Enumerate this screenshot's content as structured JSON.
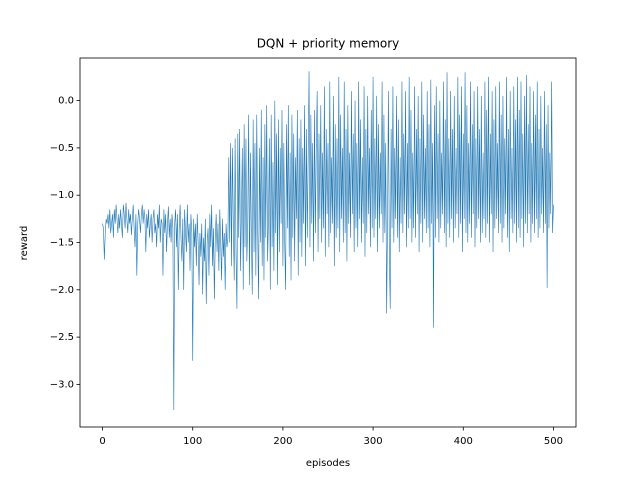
{
  "chart_data": {
    "type": "line",
    "title": "DQN + priority memory",
    "x_label": "episodes",
    "y_label": "reward",
    "color": "#1f77b4",
    "xlim": [
      -25,
      525
    ],
    "xticks": [
      0,
      100,
      200,
      300,
      400,
      500
    ],
    "ylim": [
      -3.45,
      0.45
    ],
    "yticks": [
      {
        "value": -3.0,
        "label": "−3.0"
      },
      {
        "value": -2.5,
        "label": "−2.5"
      },
      {
        "value": -2.0,
        "label": "−2.0"
      },
      {
        "value": -1.5,
        "label": "−1.5"
      },
      {
        "value": -1.0,
        "label": "−1.0"
      },
      {
        "value": -0.5,
        "label": "−0.5"
      },
      {
        "value": 0.0,
        "label": "0.0"
      }
    ],
    "values": [
      -1.3,
      -1.35,
      -1.68,
      -1.4,
      -1.25,
      -1.3,
      -1.2,
      -1.35,
      -1.15,
      -1.4,
      -1.3,
      -1.2,
      -1.45,
      -1.15,
      -1.3,
      -1.1,
      -1.25,
      -1.4,
      -1.2,
      -1.35,
      -1.15,
      -1.3,
      -1.45,
      -1.1,
      -1.2,
      -1.35,
      -1.08,
      -1.25,
      -1.4,
      -1.15,
      -1.3,
      -1.2,
      -1.42,
      -1.25,
      -1.1,
      -1.35,
      -1.55,
      -1.2,
      -1.85,
      -1.3,
      -1.15,
      -1.25,
      -1.4,
      -1.2,
      -1.1,
      -1.3,
      -1.15,
      -1.25,
      -1.6,
      -1.2,
      -1.35,
      -1.15,
      -1.45,
      -1.3,
      -1.2,
      -1.5,
      -1.25,
      -1.15,
      -1.4,
      -1.3,
      -1.55,
      -1.2,
      -1.35,
      -1.1,
      -1.5,
      -1.25,
      -1.3,
      -1.85,
      -1.15,
      -1.4,
      -1.2,
      -1.6,
      -1.3,
      -1.12,
      -1.45,
      -1.25,
      -1.5,
      -1.2,
      -1.35,
      -3.27,
      -1.3,
      -1.15,
      -1.55,
      -1.2,
      -2.0,
      -1.35,
      -1.1,
      -1.45,
      -1.7,
      -1.25,
      -2.0,
      -1.15,
      -1.4,
      -1.6,
      -1.1,
      -1.5,
      -1.3,
      -1.8,
      -1.2,
      -1.4,
      -2.75,
      -1.25,
      -1.55,
      -1.3,
      -1.75,
      -1.2,
      -1.5,
      -1.95,
      -1.4,
      -1.65,
      -1.3,
      -2.05,
      -1.45,
      -1.7,
      -1.25,
      -2.15,
      -1.5,
      -1.35,
      -1.85,
      -1.2,
      -1.55,
      -1.1,
      -1.75,
      -1.35,
      -2.1,
      -1.45,
      -1.2,
      -1.6,
      -1.3,
      -1.8,
      -1.15,
      -1.5,
      -1.9,
      -1.25,
      -1.65,
      -1.4,
      -2.0,
      -1.3,
      -1.55,
      -1.45,
      -0.6,
      -1.5,
      -0.45,
      -1.75,
      -0.5,
      -1.3,
      -1.9,
      -0.4,
      -1.6,
      -2.2,
      -0.35,
      -1.45,
      -0.3,
      -1.8,
      -1.2,
      -0.5,
      -2.0,
      -0.25,
      -1.55,
      -0.4,
      -1.7,
      -1.3,
      -0.15,
      -1.95,
      -0.55,
      -1.4,
      -2.05,
      -0.2,
      -1.6,
      -0.45,
      -1.85,
      -0.15,
      -1.35,
      -2.1,
      -0.5,
      -1.5,
      -0.1,
      -1.75,
      -0.6,
      -1.9,
      -0.25,
      -1.45,
      -0.05,
      -1.7,
      -1.25,
      -0.4,
      -2.0,
      -0.15,
      -1.55,
      -0.65,
      -1.8,
      0.0,
      -1.4,
      -0.35,
      -1.95,
      -0.2,
      -1.6,
      -0.5,
      -1.3,
      -0.1,
      -1.75,
      -0.45,
      -1.5,
      -2.0,
      -0.25,
      -1.35,
      -0.05,
      -1.65,
      -0.55,
      -1.9,
      -0.15,
      -1.45,
      -0.35,
      -1.7,
      -0.6,
      -1.25,
      -0.1,
      -1.85,
      -0.4,
      -1.5,
      -0.2,
      -1.65,
      -0.5,
      -1.3,
      -0.05,
      -1.75,
      -0.3,
      -1.45,
      -0.6,
      0.31,
      -1.55,
      -0.15,
      -1.3,
      -0.45,
      -1.7,
      -0.1,
      -1.4,
      -0.5,
      0.1,
      -1.6,
      -0.35,
      -1.25,
      -0.05,
      -1.5,
      -0.55,
      -1.35,
      0.15,
      -1.65,
      -0.3,
      -1.2,
      -0.45,
      -1.55,
      0.2,
      -1.4,
      -0.6,
      -1.3,
      0.05,
      -1.75,
      -0.25,
      -1.45,
      -0.4,
      -1.35,
      0.25,
      -1.6,
      -0.15,
      -1.25,
      -0.5,
      -1.5,
      0.2,
      -1.4,
      -0.3,
      -1.7,
      -0.05,
      -1.3,
      -0.55,
      -1.45,
      0.1,
      -1.2,
      -0.35,
      -1.6,
      0.0,
      -1.35,
      -0.45,
      -1.55,
      0.2,
      -1.25,
      -0.2,
      -1.5,
      -0.6,
      -1.3,
      0.15,
      -1.65,
      -0.3,
      -1.4,
      0.05,
      -1.2,
      -0.5,
      -1.55,
      -0.1,
      -1.35,
      0.25,
      -1.45,
      -0.4,
      -1.25,
      0.05,
      -1.6,
      -0.25,
      -1.35,
      -0.55,
      -1.2,
      0.2,
      -1.5,
      -0.15,
      -1.4,
      -0.45,
      -2.25,
      -1.3,
      0.1,
      -1.6,
      -2.2,
      -0.3,
      -1.35,
      0.15,
      -1.5,
      -0.5,
      -1.25,
      0.05,
      -1.45,
      -0.2,
      -1.6,
      -0.6,
      -1.3,
      0.2,
      -1.4,
      -0.35,
      -1.2,
      0.1,
      -1.55,
      -0.45,
      -1.35,
      0.25,
      -1.25,
      -0.1,
      -1.5,
      -0.55,
      -1.35,
      0.15,
      -1.45,
      -0.3,
      -1.2,
      0.05,
      -1.6,
      -0.4,
      -1.3,
      0.2,
      -1.5,
      -0.15,
      -1.25,
      -0.5,
      -1.4,
      0.1,
      -1.35,
      -0.25,
      -1.55,
      0.22,
      -1.3,
      -0.45,
      -2.4,
      -0.05,
      -1.45,
      0.15,
      -1.25,
      -0.35,
      -1.5,
      0.0,
      -1.35,
      -0.55,
      -1.2,
      0.2,
      -1.4,
      -0.2,
      -1.55,
      0.3,
      -1.3,
      -0.4,
      -1.45,
      0.1,
      -1.25,
      -0.3,
      -1.5,
      0.05,
      -1.35,
      -0.5,
      -1.2,
      0.25,
      -1.45,
      -0.15,
      -1.3,
      0.15,
      -1.6,
      -0.35,
      -1.25,
      0.3,
      -1.4,
      -0.05,
      -1.5,
      -0.45,
      -1.3,
      0.2,
      -1.45,
      -0.25,
      -1.2,
      0.1,
      -1.55,
      -0.4,
      -1.35,
      0.15,
      -1.25,
      -0.3,
      -1.5,
      0.05,
      -1.4,
      -0.55,
      -1.25,
      0.2,
      -1.45,
      -0.1,
      -1.3,
      0.25,
      -1.5,
      -0.35,
      -1.2,
      0.1,
      -1.6,
      -0.2,
      -1.35,
      0.15,
      -1.25,
      -0.45,
      -1.4,
      0.2,
      -1.3,
      -0.15,
      -1.5,
      0.05,
      -1.35,
      -0.4,
      -1.2,
      0.25,
      -1.45,
      -0.3,
      -1.6,
      0.1,
      -1.25,
      -0.5,
      -1.4,
      0.15,
      -1.3,
      -0.2,
      -1.5,
      0.25,
      -1.35,
      -0.1,
      -1.45,
      0.2,
      -1.25,
      -0.35,
      -1.55,
      0.05,
      -1.3,
      0.27,
      -1.4,
      -0.25,
      -1.2,
      0.15,
      -1.5,
      -0.45,
      -1.3,
      0.1,
      -1.4,
      -0.15,
      -1.25,
      0.2,
      -1.45,
      -0.3,
      -1.35,
      0.05,
      -1.2,
      -0.5,
      -1.4,
      0.1,
      -1.3,
      -0.25,
      -1.98,
      -0.05,
      -1.35,
      -0.55,
      -1.2,
      0.2,
      -1.4,
      -1.1
    ]
  }
}
